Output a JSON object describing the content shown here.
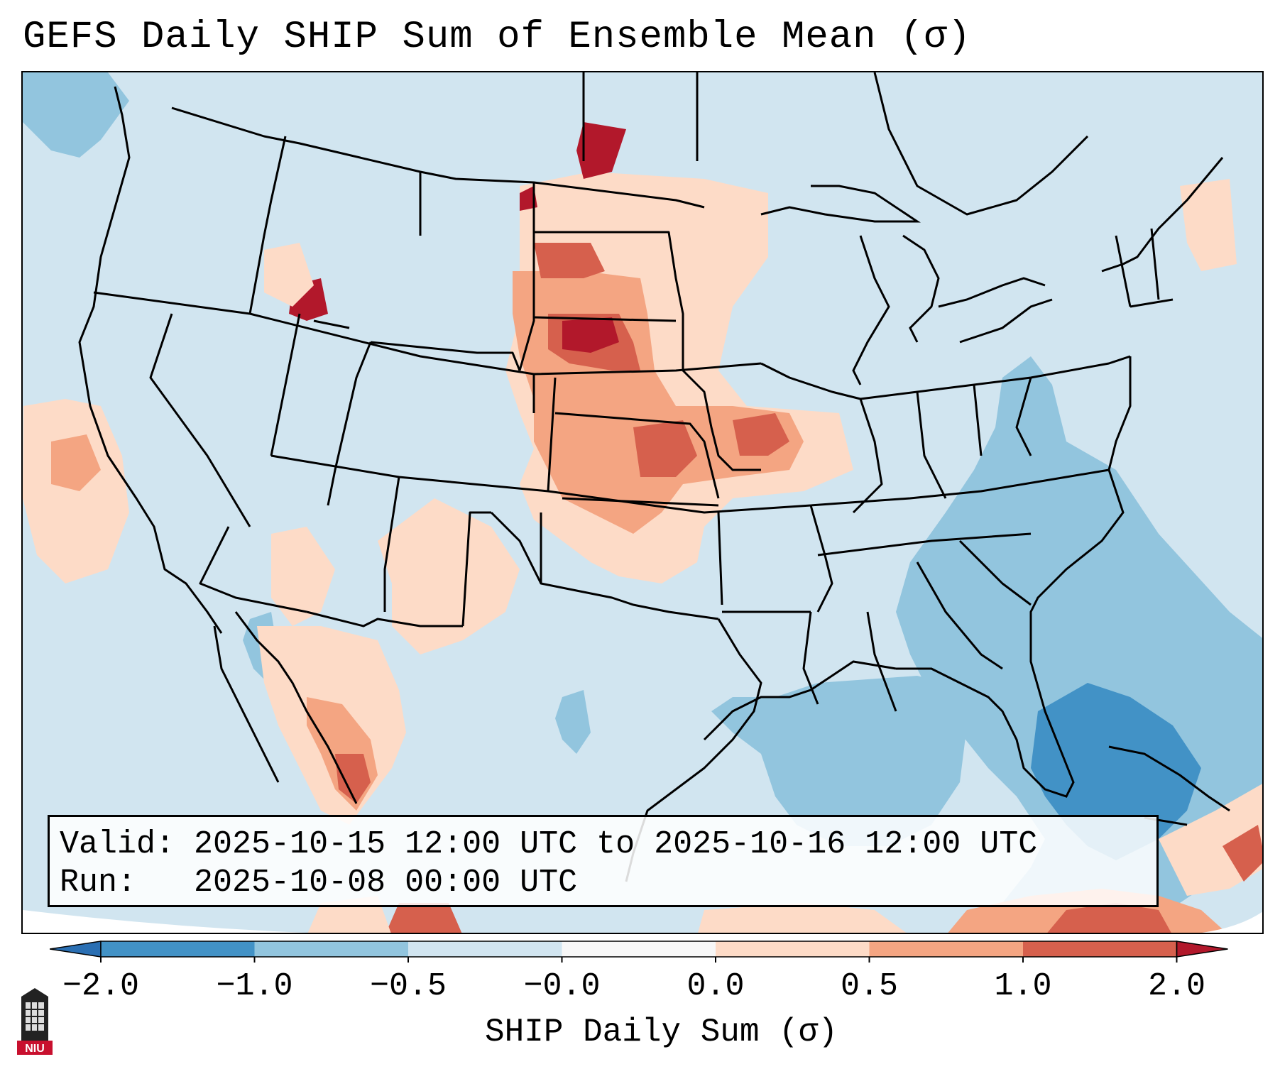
{
  "figure": {
    "title": "GEFS Daily SHIP Sum of Ensemble Mean (σ)",
    "map_region": "Continental United States"
  },
  "info_box": {
    "valid_label": "Valid:",
    "valid_value": "2025-10-15 12:00 UTC to 2025-10-16 12:00 UTC",
    "run_label": "Run:",
    "run_value": "2025-10-08 00:00 UTC"
  },
  "colorbar": {
    "label": "SHIP Daily Sum (σ)",
    "ticks": [
      "−2.0",
      "−1.0",
      "−0.5",
      "−0.0",
      "0.0",
      "0.5",
      "1.0",
      "2.0"
    ],
    "bins": [
      {
        "range": "< -2.0",
        "color": "#2a6fb3"
      },
      {
        "range": "-2.0 to -1.0",
        "color": "#4292c6"
      },
      {
        "range": "-1.0 to -0.5",
        "color": "#92c5de"
      },
      {
        "range": "-0.5 to -0.0",
        "color": "#d1e5f0"
      },
      {
        "range": "-0.0 to 0.0",
        "color": "#f7f7f7"
      },
      {
        "range": "0.0 to 0.5",
        "color": "#fddbc7"
      },
      {
        "range": "0.5 to 1.0",
        "color": "#f4a582"
      },
      {
        "range": "1.0 to 2.0",
        "color": "#d6604d"
      },
      {
        "range": "> 2.0",
        "color": "#b2182b"
      }
    ]
  },
  "logo": {
    "text": "NIU",
    "icon": "niu-logo-icon"
  }
}
